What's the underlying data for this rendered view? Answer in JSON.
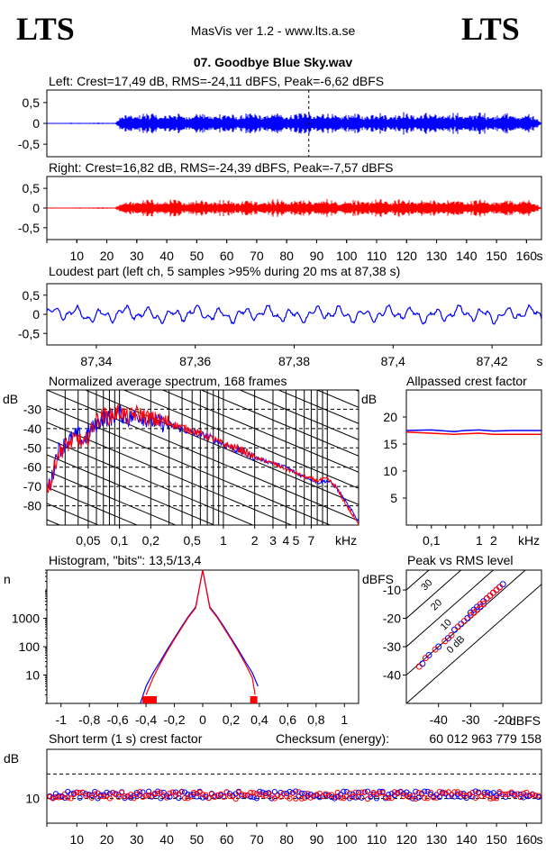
{
  "header": {
    "logo_left": "LTS",
    "logo_right": "LTS",
    "app_title": "MasVis ver 1.2 - www.lts.a.se",
    "file_name": "07. Goodbye Blue Sky.wav"
  },
  "colors": {
    "left": "#0000ff",
    "right": "#ff0000",
    "axis": "#000000"
  },
  "chart_data": [
    {
      "id": "left-waveform",
      "type": "line",
      "title": "Left: Crest=17,49 dB, RMS=-24,11 dBFS, Peak=-6,62 dBFS",
      "y_ticks": [
        "0,5",
        "0",
        "-0,5"
      ],
      "ylim": [
        -0.8,
        0.8
      ],
      "xlim": [
        0,
        165
      ],
      "marker_time_s": 87.38,
      "envelope": {
        "t": [
          0,
          23,
          24,
          26,
          30,
          40,
          50,
          60,
          70,
          80,
          87,
          90,
          100,
          110,
          120,
          130,
          140,
          150,
          160,
          163,
          165
        ],
        "amp": [
          0.01,
          0.02,
          0.12,
          0.2,
          0.24,
          0.22,
          0.24,
          0.22,
          0.23,
          0.24,
          0.27,
          0.23,
          0.22,
          0.24,
          0.24,
          0.23,
          0.24,
          0.24,
          0.22,
          0.15,
          0.02
        ]
      }
    },
    {
      "id": "right-waveform",
      "type": "line",
      "title": "Right: Crest=16,82 dB, RMS=-24,39 dBFS, Peak=-7,57 dBFS",
      "y_ticks": [
        "0,5",
        "0",
        "-0,5"
      ],
      "ylim": [
        -0.8,
        0.8
      ],
      "xlim": [
        0,
        165
      ],
      "x_ticks": [
        "10",
        "20",
        "30",
        "40",
        "50",
        "60",
        "70",
        "80",
        "90",
        "100",
        "110",
        "120",
        "130",
        "140",
        "150",
        "160",
        "s"
      ],
      "envelope": {
        "t": [
          0,
          23,
          24,
          26,
          30,
          40,
          50,
          60,
          70,
          80,
          90,
          100,
          110,
          120,
          130,
          140,
          150,
          160,
          163,
          165
        ],
        "amp": [
          0.01,
          0.02,
          0.08,
          0.16,
          0.2,
          0.19,
          0.2,
          0.19,
          0.2,
          0.2,
          0.2,
          0.19,
          0.2,
          0.21,
          0.2,
          0.2,
          0.2,
          0.2,
          0.12,
          0.02
        ]
      }
    },
    {
      "id": "loudest-part",
      "type": "line",
      "title": "Loudest part (left  ch, 5 samples >95% during 20 ms at 87,38 s)",
      "y_ticks": [
        "0,5",
        "0",
        "-0,5"
      ],
      "ylim": [
        -0.8,
        0.8
      ],
      "xlim": [
        87.33,
        87.43
      ],
      "x_ticks": [
        "87,34",
        "87,36",
        "87,38",
        "87,4",
        "87,42",
        "s"
      ]
    },
    {
      "id": "spectrum",
      "type": "line",
      "title": "Normalized average spectrum, 168 frames",
      "y_unit": "dB",
      "ylim": [
        -90,
        -20
      ],
      "y_ticks": [
        "-30",
        "-40",
        "-50",
        "-60",
        "-70",
        "-80"
      ],
      "x_scale": "log",
      "xlim": [
        0.02,
        20
      ],
      "x_ticks": [
        "0,05",
        "0,1",
        "0,2",
        "0,5",
        "1",
        "2",
        "3",
        "4",
        "5",
        "7",
        "kHz"
      ],
      "series": [
        {
          "name": "left",
          "x": [
            0.02,
            0.022,
            0.025,
            0.03,
            0.035,
            0.04,
            0.045,
            0.05,
            0.06,
            0.07,
            0.08,
            0.1,
            0.12,
            0.15,
            0.2,
            0.3,
            0.5,
            0.7,
            1,
            1.5,
            2,
            3,
            4,
            5,
            6,
            7,
            8,
            10,
            12,
            15,
            20
          ],
          "y": [
            -70,
            -68,
            -52,
            -48,
            -45,
            -43,
            -47,
            -42,
            -38,
            -34,
            -35,
            -32,
            -35,
            -33,
            -36,
            -38,
            -42,
            -44,
            -48,
            -52,
            -55,
            -58,
            -60,
            -63,
            -65,
            -66,
            -68,
            -67,
            -70,
            -78,
            -88
          ]
        },
        {
          "name": "right",
          "x": [
            0.02,
            0.022,
            0.025,
            0.03,
            0.035,
            0.04,
            0.045,
            0.05,
            0.06,
            0.07,
            0.08,
            0.1,
            0.12,
            0.15,
            0.2,
            0.3,
            0.5,
            0.7,
            1,
            1.5,
            2,
            3,
            4,
            5,
            6,
            7,
            8,
            10,
            12,
            15,
            20
          ],
          "y": [
            -70,
            -68,
            -54,
            -49,
            -47,
            -45,
            -49,
            -44,
            -36,
            -33,
            -34,
            -31,
            -34,
            -32,
            -35,
            -37,
            -41,
            -44,
            -48,
            -51,
            -55,
            -58,
            -61,
            -63,
            -65,
            -66,
            -67,
            -66,
            -70,
            -79,
            -90
          ]
        }
      ]
    },
    {
      "id": "allpassed-crest",
      "type": "line",
      "title": "Allpassed crest factor",
      "y_unit": "dB",
      "ylim": [
        0,
        25
      ],
      "y_ticks": [
        "20",
        "15",
        "10",
        "5"
      ],
      "x_scale": "log",
      "xlim": [
        0.03,
        20
      ],
      "x_ticks": [
        "0,1",
        "1",
        "2",
        "kHz"
      ],
      "series": [
        {
          "name": "left",
          "x": [
            0.03,
            0.1,
            0.3,
            0.5,
            1,
            2,
            5,
            20
          ],
          "y": [
            17.5,
            17.6,
            17.3,
            17.5,
            17.6,
            17.4,
            17.5,
            17.5
          ]
        },
        {
          "name": "right",
          "x": [
            0.03,
            0.1,
            0.3,
            0.5,
            1,
            2,
            5,
            20
          ],
          "y": [
            17.2,
            17.0,
            16.8,
            16.9,
            17.0,
            16.8,
            16.8,
            16.8
          ]
        }
      ]
    },
    {
      "id": "histogram",
      "type": "line",
      "title": "Histogram, \"bits\": 13,5/13,4",
      "y_unit": "n",
      "y_scale": "log",
      "y_ticks": [
        "1000",
        "100",
        "10"
      ],
      "xlim": [
        -1.1,
        1.1
      ],
      "x_ticks": [
        "-1",
        "-0,8",
        "-0,6",
        "-0,4",
        "-0,2",
        "0",
        "0,2",
        "0,4",
        "0,6",
        "0,8",
        "1"
      ],
      "series": [
        {
          "name": "left",
          "x": [
            -0.44,
            -0.4,
            -0.35,
            -0.3,
            -0.25,
            -0.2,
            -0.15,
            -0.1,
            -0.05,
            0,
            0.05,
            0.1,
            0.15,
            0.2,
            0.25,
            0.3,
            0.35,
            0.39
          ],
          "y": [
            1,
            4,
            12,
            30,
            80,
            200,
            500,
            1200,
            2500,
            200000,
            2500,
            1200,
            500,
            200,
            80,
            30,
            12,
            4
          ]
        },
        {
          "name": "right",
          "x": [
            -0.4,
            -0.35,
            -0.3,
            -0.25,
            -0.2,
            -0.15,
            -0.1,
            -0.05,
            0,
            0.05,
            0.1,
            0.15,
            0.2,
            0.25,
            0.3,
            0.35,
            0.37
          ],
          "y": [
            2,
            8,
            25,
            70,
            180,
            450,
            1100,
            2300,
            200000,
            2300,
            1100,
            450,
            180,
            70,
            25,
            8,
            2
          ]
        }
      ],
      "peak_markers_x": [
        -0.4,
        -0.35,
        0.36
      ]
    },
    {
      "id": "peak-vs-rms",
      "type": "scatter",
      "title": "Peak vs RMS level",
      "y_unit": "dBFS",
      "x_unit": "dBFS",
      "xlim": [
        -50,
        -8
      ],
      "ylim": [
        -50,
        -3
      ],
      "x_ticks": [
        "-40",
        "-30",
        "-20"
      ],
      "y_ticks": [
        "-10",
        "-20",
        "-30",
        "-40"
      ],
      "diagonal_labels": [
        "40",
        "30",
        "20",
        "10",
        "0 dB"
      ],
      "series": [
        {
          "name": "left",
          "x": [
            -45,
            -43,
            -40,
            -37,
            -35,
            -33,
            -31,
            -30,
            -29,
            -28,
            -27,
            -26,
            -25,
            -24,
            -23,
            -22,
            -21,
            -20
          ],
          "y": [
            -36,
            -33,
            -30,
            -27,
            -24,
            -22,
            -20,
            -18,
            -17,
            -16,
            -16,
            -14,
            -13,
            -12,
            -11,
            -10,
            -9,
            -8
          ]
        },
        {
          "name": "right",
          "x": [
            -46,
            -44,
            -41,
            -38,
            -36,
            -34,
            -32,
            -30,
            -29,
            -28,
            -27,
            -26,
            -25,
            -24,
            -23,
            -22,
            -21
          ],
          "y": [
            -37,
            -34,
            -31,
            -28,
            -26,
            -23,
            -21,
            -19,
            -18,
            -17,
            -15,
            -15,
            -13,
            -12,
            -11,
            -10,
            -9
          ]
        }
      ]
    },
    {
      "id": "short-term-crest",
      "type": "scatter",
      "title": "Short term (1 s) crest factor",
      "y_unit": "dB",
      "ylim": [
        0,
        30
      ],
      "y_ticks": [
        "10"
      ],
      "xlim": [
        0,
        165
      ],
      "x_ticks": [
        "10",
        "20",
        "30",
        "40",
        "50",
        "60",
        "70",
        "80",
        "90",
        "100",
        "110",
        "120",
        "130",
        "140",
        "150",
        "160",
        "s"
      ],
      "checksum_label": "Checksum (energy):",
      "checksum_value": "60 012 963 779 158"
    }
  ]
}
